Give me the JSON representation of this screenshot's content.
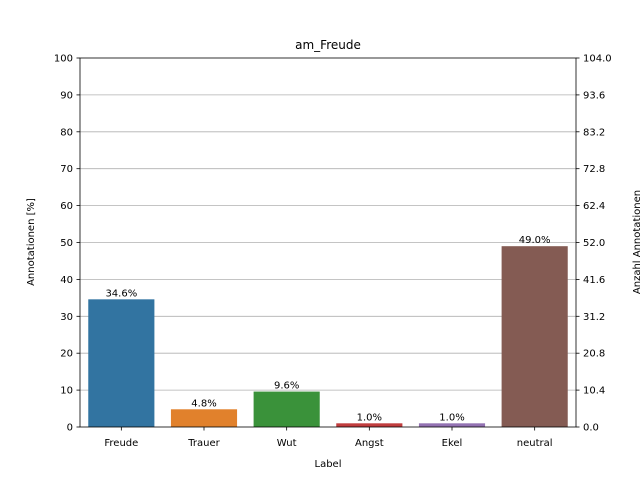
{
  "chart_data": {
    "type": "bar",
    "title": "am_Freude",
    "xlabel": "Label",
    "ylabel": "Annotationen [%]",
    "ylabel_right": "Anzahl Annotationen",
    "categories": [
      "Freude",
      "Trauer",
      "Wut",
      "Angst",
      "Ekel",
      "neutral"
    ],
    "values": [
      34.6,
      4.8,
      9.6,
      1.0,
      1.0,
      49.0
    ],
    "value_labels": [
      "34.6%",
      "4.8%",
      "9.6%",
      "1.0%",
      "1.0%",
      "49.0%"
    ],
    "ylim": [
      0,
      100
    ],
    "yticks": [
      "0",
      "10",
      "20",
      "30",
      "40",
      "50",
      "60",
      "70",
      "80",
      "90",
      "100"
    ],
    "ylim_right": [
      0,
      104
    ],
    "yticks_right": [
      "0.0",
      "10.4",
      "20.8",
      "31.2",
      "41.6",
      "52.0",
      "62.4",
      "72.8",
      "83.2",
      "93.6",
      "104.0"
    ],
    "colors": [
      "#3274a1",
      "#e1812c",
      "#3a923a",
      "#c03d3e",
      "#9372b2",
      "#845b53"
    ],
    "grid": true,
    "legend": "none"
  }
}
